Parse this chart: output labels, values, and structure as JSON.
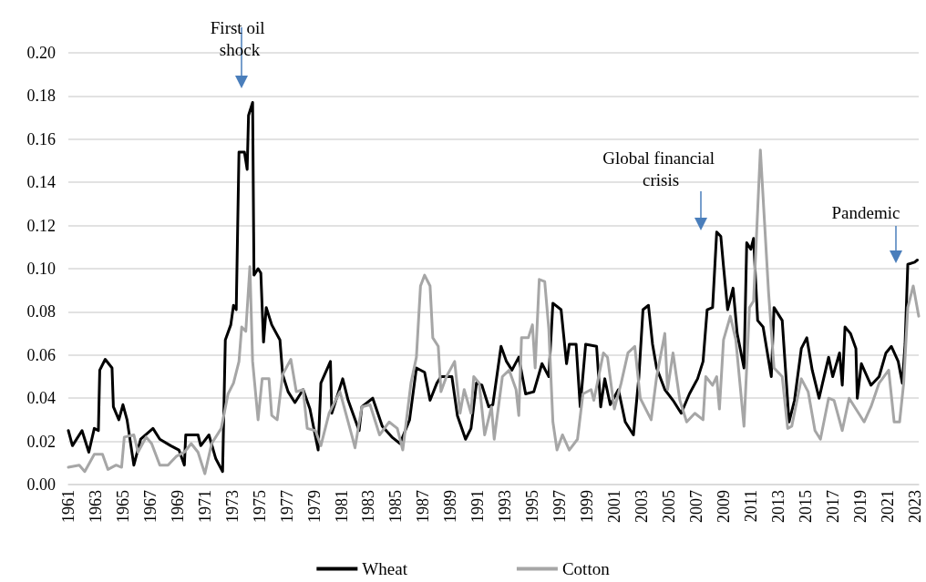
{
  "chart_data": {
    "type": "line",
    "legend": "bottom",
    "grid": "y",
    "marker": "none",
    "line_style": "solid",
    "xlim": [
      1961,
      2023.3
    ],
    "xticks": [
      1961,
      1963,
      1965,
      1967,
      1969,
      1971,
      1973,
      1975,
      1977,
      1979,
      1981,
      1983,
      1985,
      1987,
      1989,
      1991,
      1993,
      1995,
      1997,
      1999,
      2001,
      2003,
      2005,
      2007,
      2009,
      2011,
      2013,
      2015,
      2017,
      2019,
      2021,
      2023
    ],
    "ylim": [
      0,
      0.2
    ],
    "yticks": [
      {
        "value": 0,
        "label": "0.00"
      },
      {
        "value": 0.02,
        "label": "0.02"
      },
      {
        "value": 0.04,
        "label": "0.04"
      },
      {
        "value": 0.06,
        "label": "0.06"
      },
      {
        "value": 0.08,
        "label": "0.08"
      },
      {
        "value": 0.1,
        "label": "0.10"
      },
      {
        "value": 0.12,
        "label": "0.12"
      },
      {
        "value": 0.14,
        "label": "0.14"
      },
      {
        "value": 0.16,
        "label": "0.16"
      },
      {
        "value": 0.18,
        "label": "0.18"
      },
      {
        "value": 0.2,
        "label": "0.20"
      }
    ],
    "annotations": [
      "First oil shock",
      "Global financial crisis",
      "Pandemic"
    ],
    "series": [
      {
        "name": "Wheat",
        "color": "#000000",
        "x": [
          1961.0,
          1961.3,
          1962.0,
          1962.5,
          1962.9,
          1963.2,
          1963.3,
          1963.7,
          1964.2,
          1964.3,
          1964.7,
          1965.0,
          1965.3,
          1965.8,
          1966.3,
          1967.2,
          1967.7,
          1968.5,
          1969.1,
          1969.5,
          1969.6,
          1970.5,
          1970.7,
          1971.3,
          1971.8,
          1972.3,
          1972.5,
          1972.9,
          1973.1,
          1973.3,
          1973.5,
          1973.9,
          1974.1,
          1974.2,
          1974.5,
          1974.6,
          1974.9,
          1975.1,
          1975.3,
          1975.5,
          1975.9,
          1976.5,
          1976.7,
          1977.1,
          1977.6,
          1978.2,
          1978.7,
          1979.3,
          1979.5,
          1980.2,
          1980.3,
          1981.1,
          1981.5,
          1982.3,
          1982.5,
          1983.3,
          1984.0,
          1984.7,
          1985.3,
          1986.0,
          1986.5,
          1987.1,
          1987.5,
          1988.0,
          1988.3,
          1989.1,
          1989.5,
          1990.1,
          1990.5,
          1990.9,
          1991.3,
          1991.8,
          1992.1,
          1992.7,
          1993.1,
          1993.5,
          1994.0,
          1994.5,
          1995.1,
          1995.7,
          1996.2,
          1996.5,
          1997.1,
          1997.5,
          1997.7,
          1998.2,
          1998.5,
          1998.9,
          1999.7,
          2000.0,
          2000.3,
          2000.7,
          2001.3,
          2001.8,
          2002.4,
          2002.8,
          2003.1,
          2003.5,
          2003.8,
          2004.1,
          2004.7,
          2005.3,
          2005.9,
          2006.5,
          2007.1,
          2007.5,
          2007.8,
          2008.2,
          2008.5,
          2008.8,
          2009.0,
          2009.3,
          2009.7,
          2010.0,
          2010.5,
          2010.7,
          2011.0,
          2011.2,
          2011.5,
          2011.9,
          2012.5,
          2012.7,
          2013.3,
          2013.8,
          2014.2,
          2014.7,
          2015.1,
          2015.5,
          2016.0,
          2016.7,
          2017.0,
          2017.5,
          2017.7,
          2017.9,
          2018.3,
          2018.7,
          2018.8,
          2019.1,
          2019.8,
          2020.4,
          2020.9,
          2021.3,
          2021.8,
          2022.1,
          2022.3,
          2022.5,
          2023.0,
          2023.2
        ],
        "values": [
          0.025,
          0.018,
          0.025,
          0.015,
          0.026,
          0.025,
          0.053,
          0.058,
          0.054,
          0.036,
          0.03,
          0.037,
          0.03,
          0.009,
          0.021,
          0.026,
          0.021,
          0.018,
          0.016,
          0.009,
          0.023,
          0.023,
          0.018,
          0.023,
          0.012,
          0.006,
          0.067,
          0.074,
          0.083,
          0.081,
          0.154,
          0.154,
          0.146,
          0.171,
          0.177,
          0.097,
          0.1,
          0.098,
          0.066,
          0.082,
          0.074,
          0.067,
          0.051,
          0.043,
          0.038,
          0.044,
          0.035,
          0.016,
          0.047,
          0.057,
          0.033,
          0.049,
          0.039,
          0.025,
          0.036,
          0.04,
          0.027,
          0.022,
          0.019,
          0.03,
          0.054,
          0.052,
          0.039,
          0.047,
          0.05,
          0.05,
          0.032,
          0.021,
          0.026,
          0.047,
          0.046,
          0.036,
          0.037,
          0.064,
          0.057,
          0.053,
          0.059,
          0.042,
          0.043,
          0.056,
          0.05,
          0.084,
          0.081,
          0.056,
          0.065,
          0.065,
          0.036,
          0.065,
          0.064,
          0.036,
          0.049,
          0.037,
          0.044,
          0.029,
          0.023,
          0.05,
          0.081,
          0.083,
          0.065,
          0.054,
          0.044,
          0.039,
          0.033,
          0.042,
          0.049,
          0.057,
          0.081,
          0.082,
          0.117,
          0.115,
          0.101,
          0.081,
          0.091,
          0.07,
          0.054,
          0.112,
          0.109,
          0.114,
          0.076,
          0.073,
          0.05,
          0.082,
          0.076,
          0.029,
          0.039,
          0.063,
          0.068,
          0.053,
          0.04,
          0.059,
          0.05,
          0.061,
          0.046,
          0.073,
          0.07,
          0.063,
          0.04,
          0.056,
          0.046,
          0.05,
          0.061,
          0.064,
          0.057,
          0.047,
          0.065,
          0.102,
          0.103,
          0.104
        ]
      },
      {
        "name": "Cotton",
        "color": "#a6a6a6",
        "x": [
          1961.0,
          1961.8,
          1962.2,
          1962.9,
          1963.5,
          1963.9,
          1964.5,
          1964.9,
          1965.1,
          1965.8,
          1966.1,
          1966.7,
          1967.1,
          1967.7,
          1968.3,
          1968.9,
          1969.5,
          1970.0,
          1970.5,
          1971.0,
          1971.5,
          1972.2,
          1972.7,
          1973.1,
          1973.5,
          1973.7,
          1974.0,
          1974.3,
          1974.5,
          1974.9,
          1975.2,
          1975.7,
          1975.9,
          1976.3,
          1976.7,
          1977.3,
          1977.7,
          1978.2,
          1978.5,
          1979.1,
          1979.5,
          1980.1,
          1980.9,
          1981.8,
          1982.0,
          1982.5,
          1983.1,
          1983.8,
          1984.5,
          1985.1,
          1985.5,
          1986.1,
          1986.5,
          1986.8,
          1987.1,
          1987.5,
          1987.7,
          1988.1,
          1988.3,
          1988.7,
          1989.3,
          1989.7,
          1990.0,
          1990.5,
          1990.7,
          1991.1,
          1991.5,
          1992.0,
          1992.2,
          1992.8,
          1993.3,
          1993.8,
          1994.0,
          1994.2,
          1994.7,
          1995.0,
          1995.2,
          1995.5,
          1995.9,
          1996.2,
          1996.5,
          1996.8,
          1997.2,
          1997.7,
          1998.3,
          1998.7,
          1999.3,
          1999.5,
          2000.2,
          2000.5,
          2001.0,
          2001.5,
          2002.0,
          2002.5,
          2002.9,
          2003.7,
          2004.1,
          2004.7,
          2004.9,
          2005.3,
          2005.8,
          2006.3,
          2006.9,
          2007.5,
          2007.7,
          2008.2,
          2008.5,
          2008.7,
          2009.0,
          2009.5,
          2009.9,
          2010.5,
          2010.9,
          2011.2,
          2011.7,
          2012.0,
          2012.3,
          2012.7,
          2013.3,
          2013.7,
          2014.0,
          2014.7,
          2015.2,
          2015.7,
          2016.1,
          2016.7,
          2017.1,
          2017.7,
          2018.2,
          2018.9,
          2019.3,
          2019.8,
          2020.4,
          2021.1,
          2021.5,
          2021.9,
          2022.2,
          2022.5,
          2022.9,
          2023.3
        ],
        "values": [
          0.008,
          0.009,
          0.006,
          0.014,
          0.014,
          0.007,
          0.009,
          0.008,
          0.022,
          0.023,
          0.015,
          0.022,
          0.019,
          0.009,
          0.009,
          0.013,
          0.015,
          0.019,
          0.015,
          0.005,
          0.019,
          0.026,
          0.042,
          0.047,
          0.057,
          0.073,
          0.071,
          0.101,
          0.057,
          0.03,
          0.049,
          0.049,
          0.032,
          0.03,
          0.051,
          0.058,
          0.043,
          0.044,
          0.026,
          0.025,
          0.018,
          0.033,
          0.043,
          0.022,
          0.017,
          0.036,
          0.037,
          0.023,
          0.029,
          0.026,
          0.016,
          0.047,
          0.059,
          0.092,
          0.097,
          0.092,
          0.068,
          0.064,
          0.043,
          0.05,
          0.057,
          0.033,
          0.044,
          0.033,
          0.05,
          0.047,
          0.023,
          0.036,
          0.021,
          0.05,
          0.053,
          0.044,
          0.032,
          0.068,
          0.068,
          0.074,
          0.054,
          0.095,
          0.094,
          0.072,
          0.029,
          0.016,
          0.023,
          0.016,
          0.021,
          0.042,
          0.044,
          0.039,
          0.061,
          0.059,
          0.035,
          0.047,
          0.061,
          0.064,
          0.04,
          0.03,
          0.05,
          0.07,
          0.044,
          0.061,
          0.039,
          0.029,
          0.033,
          0.03,
          0.05,
          0.046,
          0.05,
          0.035,
          0.067,
          0.078,
          0.067,
          0.027,
          0.082,
          0.085,
          0.155,
          0.122,
          0.089,
          0.054,
          0.05,
          0.026,
          0.027,
          0.049,
          0.043,
          0.025,
          0.021,
          0.04,
          0.039,
          0.025,
          0.04,
          0.033,
          0.029,
          0.036,
          0.047,
          0.053,
          0.029,
          0.029,
          0.047,
          0.082,
          0.092,
          0.078
        ]
      }
    ]
  }
}
